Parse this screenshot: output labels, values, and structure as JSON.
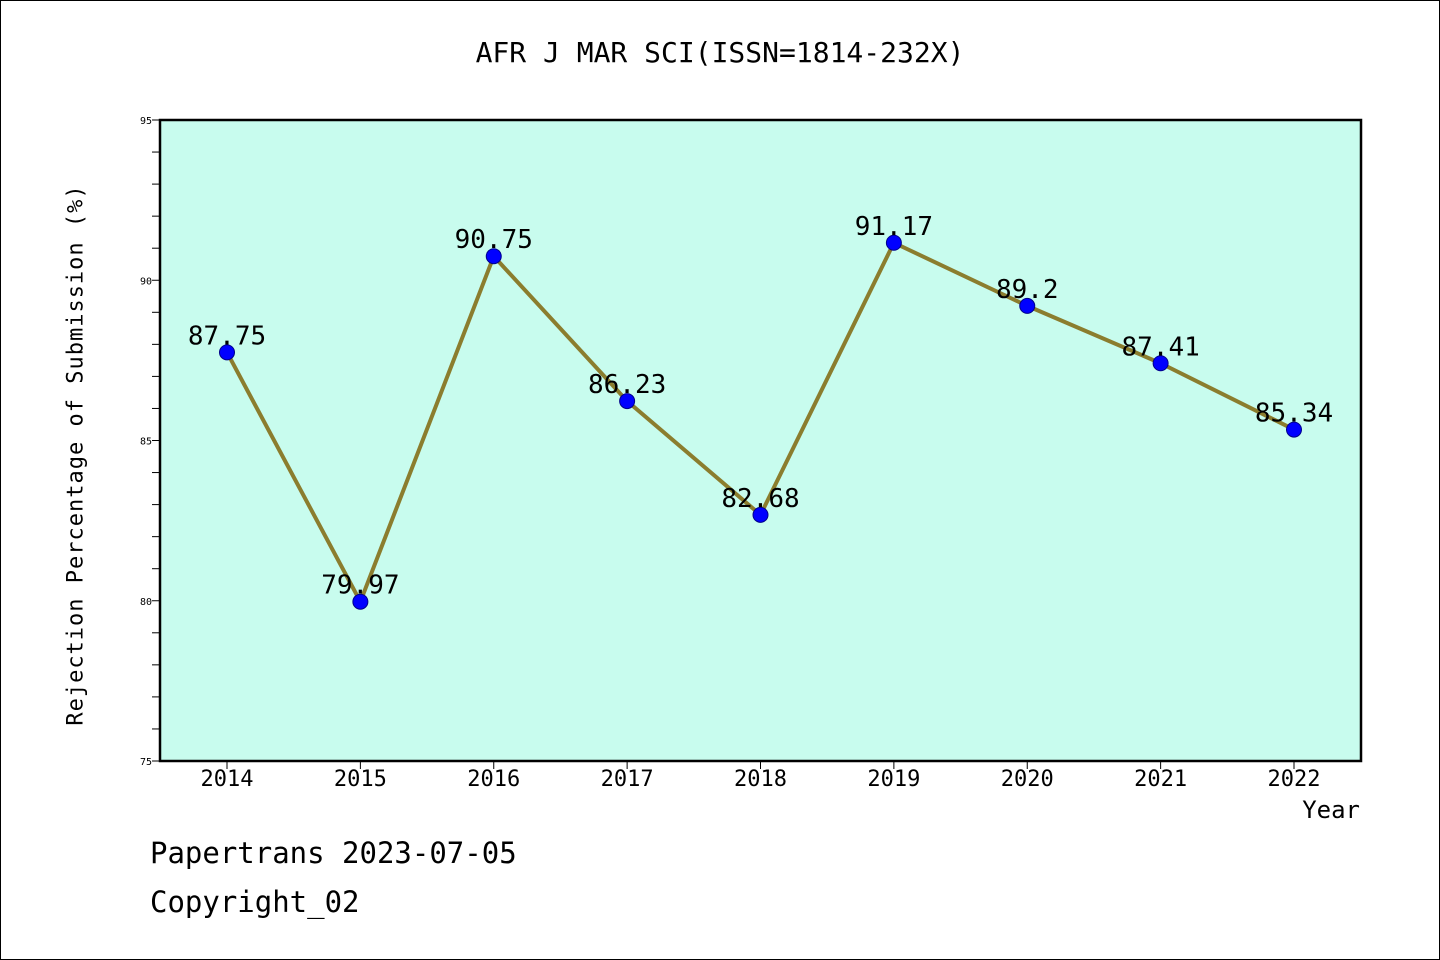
{
  "chart_data": {
    "type": "line",
    "title": "AFR J MAR SCI(ISSN=1814-232X)",
    "xlabel": "Year",
    "ylabel": "Rejection Percentage of Submission (%)",
    "categories": [
      "2014",
      "2015",
      "2016",
      "2017",
      "2018",
      "2019",
      "2020",
      "2021",
      "2022"
    ],
    "values": [
      87.75,
      79.97,
      90.75,
      86.23,
      82.68,
      91.17,
      89.2,
      87.41,
      85.34
    ],
    "data_labels": [
      "87.75",
      "79.97",
      "90.75",
      "86.23",
      "82.68",
      "91.17",
      "89.2",
      "87.41",
      "85.34"
    ],
    "ylim": [
      75,
      95
    ],
    "yticks": [
      75,
      80,
      85,
      90,
      95
    ],
    "grid": false,
    "legend": "none",
    "colors": {
      "plot_background": "#c8fcee",
      "line": "#8b7d2e",
      "marker": "#0000ff",
      "axis": "#000000"
    }
  },
  "footer": {
    "line1": "Papertrans 2023-07-05",
    "line2": "Copyright_02"
  }
}
